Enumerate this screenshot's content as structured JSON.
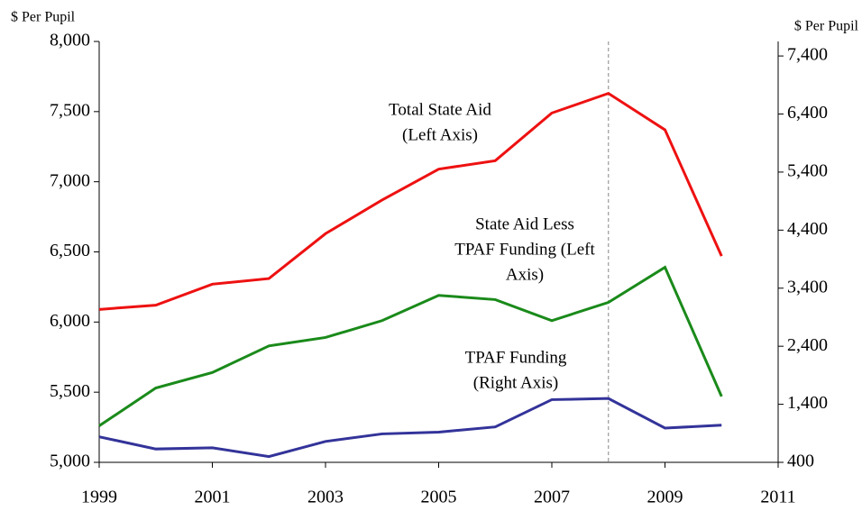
{
  "chart_data": {
    "type": "line",
    "y_label": "$ Per Pupil",
    "y2_label": "$ Per Pupil",
    "x": [
      1999,
      2000,
      2001,
      2002,
      2003,
      2004,
      2005,
      2006,
      2007,
      2008,
      2009,
      2010
    ],
    "xlim": [
      1999,
      2011
    ],
    "xticks": [
      1999,
      2001,
      2003,
      2005,
      2007,
      2009,
      2011
    ],
    "ylim": [
      5000,
      8000
    ],
    "yticks": [
      {
        "value": 5000,
        "label": "5,000"
      },
      {
        "value": 5500,
        "label": "5,500"
      },
      {
        "value": 6000,
        "label": "6,000"
      },
      {
        "value": 6500,
        "label": "6,500"
      },
      {
        "value": 7000,
        "label": "7,000"
      },
      {
        "value": 7500,
        "label": "7,500"
      },
      {
        "value": 8000,
        "label": "8,000"
      }
    ],
    "y2lim": [
      400,
      7650
    ],
    "y2ticks": [
      400,
      {
        "value": 1400,
        "label": "1,400"
      },
      {
        "value": 2400,
        "label": "2,400"
      },
      {
        "value": 3400,
        "label": "3,400"
      },
      {
        "value": 4400,
        "label": "4,400"
      },
      {
        "value": 5400,
        "label": "5,400"
      },
      {
        "value": 6400,
        "label": "6,400"
      },
      {
        "value": 7400,
        "label": "7,400"
      }
    ],
    "vline_x": 2008,
    "vline_color": "#999999",
    "series": [
      {
        "name": "Total State Aid (Left Axis)",
        "color": "#ee1111",
        "values": [
          6090,
          6120,
          6270,
          6310,
          6630,
          6870,
          7090,
          7150,
          7490,
          7630,
          7370,
          6470
        ]
      },
      {
        "name": "State Aid Less TPAF Funding (Left Axis)",
        "color": "#1a8a1a",
        "values": [
          5260,
          5530,
          5640,
          5830,
          5890,
          6010,
          6190,
          6160,
          6010,
          6140,
          6390,
          5470
        ]
      },
      {
        "name": "TPAF Funding (Right Axis)",
        "color": "#33339a",
        "axis": "y2",
        "values": [
          840,
          630,
          650,
          500,
          760,
          890,
          920,
          1010,
          1480,
          1500,
          990,
          1040
        ]
      }
    ],
    "annotations": [
      {
        "lines": [
          "Total State Aid",
          "(Left Axis)"
        ],
        "color": "#ee1111"
      },
      {
        "lines": [
          "State Aid Less",
          "TPAF Funding (Left",
          "Axis)"
        ],
        "color": "#1a8a1a"
      },
      {
        "lines": [
          "TPAF Funding",
          "(Right Axis)"
        ],
        "color": "#33339a"
      }
    ]
  }
}
